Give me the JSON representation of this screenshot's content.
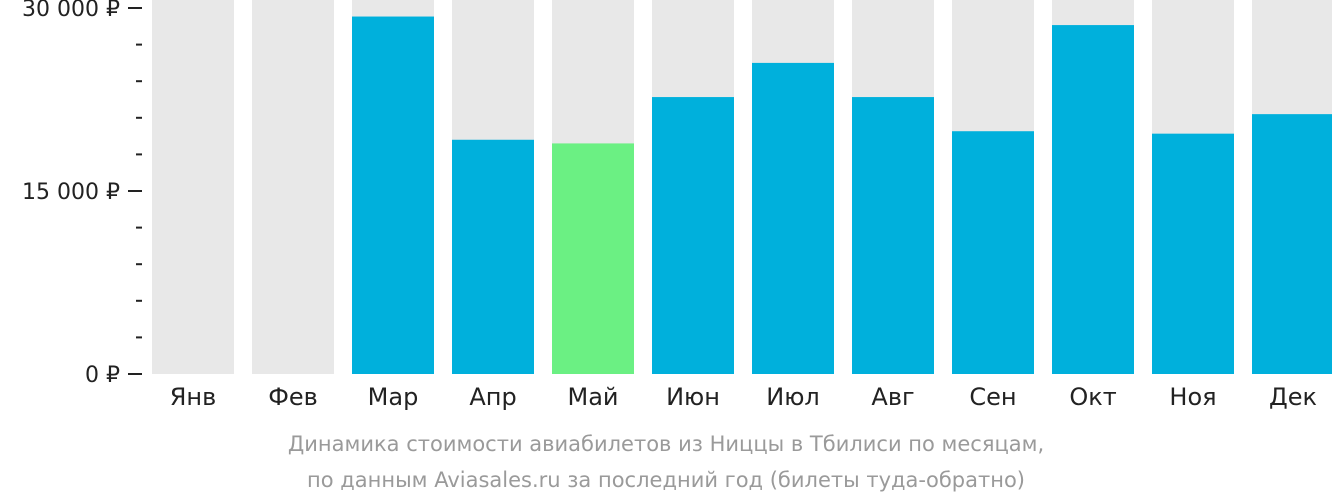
{
  "chart_data": {
    "type": "bar",
    "categories": [
      "Янв",
      "Фев",
      "Мар",
      "Апр",
      "Май",
      "Июн",
      "Июл",
      "Авг",
      "Сен",
      "Окт",
      "Ноя",
      "Дек"
    ],
    "values": [
      null,
      null,
      29300,
      19200,
      18900,
      22700,
      25500,
      22700,
      19900,
      28600,
      19700,
      21300
    ],
    "highlight_category": "Май",
    "yticks": [
      {
        "value": 30000,
        "label": "30 000 ₽"
      },
      {
        "value": 15000,
        "label": "15 000 ₽"
      },
      {
        "value": 0,
        "label": "0 ₽"
      }
    ],
    "ylim": [
      0,
      30000
    ],
    "minor_tick_step": 3000,
    "grid": false,
    "colors": {
      "bar": "#00b0dc",
      "highlight": "#6bf083",
      "background_bar": "#e8e8e8",
      "axis": "#222222"
    }
  },
  "caption": {
    "line1": "Динамика стоимости авиабилетов из Ниццы в Тбилиси по месяцам,",
    "line2": "по данным Aviasales.ru за последний год (билеты туда-обратно)"
  }
}
